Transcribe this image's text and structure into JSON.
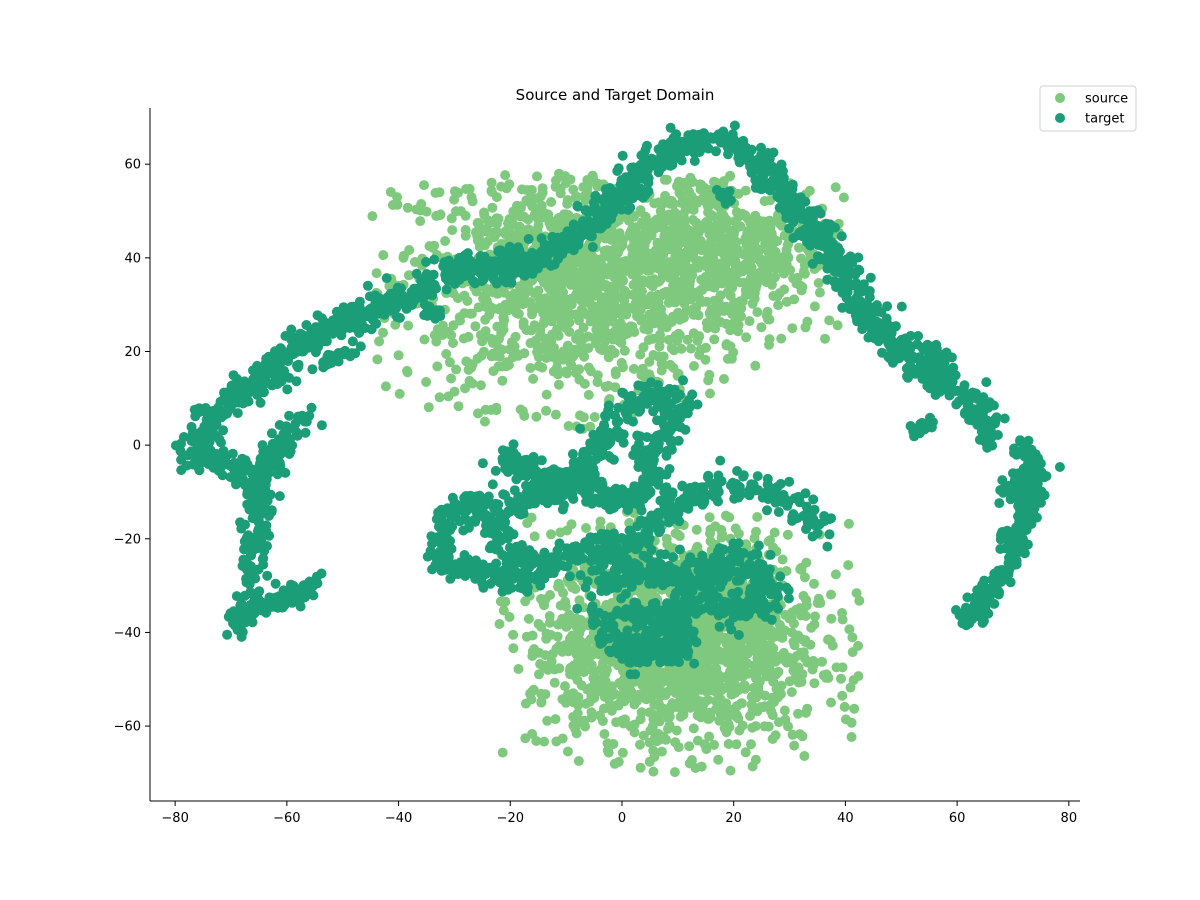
{
  "chart_data": {
    "type": "scatter",
    "title": "Source and Target Domain",
    "xlabel": "",
    "ylabel": "",
    "xlim": [
      -84.5,
      82
    ],
    "ylim": [
      -76,
      72
    ],
    "x_ticks": [
      -80,
      -60,
      -40,
      -20,
      0,
      20,
      40,
      60,
      80
    ],
    "x_tick_labels": [
      "−80",
      "−60",
      "−40",
      "−20",
      "0",
      "20",
      "40",
      "60",
      "80"
    ],
    "y_ticks": [
      -60,
      -40,
      -20,
      0,
      20,
      40,
      60
    ],
    "y_tick_labels": [
      "−60",
      "−40",
      "−20",
      "0",
      "20",
      "40",
      "60"
    ],
    "grid": false,
    "legend_position": "top-right",
    "series": [
      {
        "name": "source",
        "color": "#7fc97f",
        "clusters": [
          {
            "center": [
              -8,
              35
            ],
            "spread": [
              16,
              13
            ],
            "count": 1300,
            "bounds": {
              "x": [
                -45,
                30
              ],
              "y": [
                3,
                58
              ]
            }
          },
          {
            "center": [
              18,
              42
            ],
            "spread": [
              11,
              9
            ],
            "count": 500,
            "bounds": {
              "x": [
                -2,
                40
              ],
              "y": [
                20,
                58
              ]
            }
          },
          {
            "center": [
              10,
              -42
            ],
            "spread": [
              13,
              12
            ],
            "count": 1600,
            "bounds": {
              "x": [
                -22,
                43
              ],
              "y": [
                -70,
                -14
              ]
            }
          }
        ]
      },
      {
        "name": "target",
        "color": "#1b9e77",
        "paths": [
          {
            "points": [
              [
                -77,
                -4
              ],
              [
                -74,
                5
              ],
              [
                -70,
                10
              ],
              [
                -64,
                14
              ],
              [
                -58,
                21
              ],
              [
                -52,
                25
              ],
              [
                -46,
                28
              ],
              [
                -40,
                31
              ],
              [
                -35,
                34
              ],
              [
                -30,
                38
              ],
              [
                -25,
                38
              ],
              [
                -20,
                38
              ],
              [
                -15,
                40
              ],
              [
                -10,
                43
              ],
              [
                -5,
                48
              ],
              [
                0,
                54
              ],
              [
                4,
                59
              ],
              [
                8,
                62
              ],
              [
                12,
                64
              ],
              [
                17,
                65
              ],
              [
                22,
                63
              ],
              [
                26,
                59
              ],
              [
                30,
                53
              ],
              [
                33,
                48
              ],
              [
                36,
                43
              ],
              [
                39,
                38
              ],
              [
                43,
                30
              ],
              [
                47,
                23
              ],
              [
                52,
                18
              ],
              [
                57,
                14
              ],
              [
                62,
                10
              ],
              [
                67,
                6
              ]
            ],
            "jitter": 1.6,
            "count": 1400
          },
          {
            "points": [
              [
                -69,
                -40
              ],
              [
                -66,
                -32
              ],
              [
                -66,
                -20
              ],
              [
                -65,
                -10
              ],
              [
                -63,
                -3
              ],
              [
                -60,
                3
              ],
              [
                -56,
                6
              ]
            ],
            "jitter": 1.3,
            "count": 250
          },
          {
            "points": [
              [
                -66,
                -35
              ],
              [
                -60,
                -33
              ],
              [
                -57,
                -31
              ],
              [
                -55,
                -29
              ]
            ],
            "jitter": 1.0,
            "count": 80
          },
          {
            "points": [
              [
                -75,
                0
              ],
              [
                -72,
                -4
              ],
              [
                -69,
                -5
              ],
              [
                -66,
                -8
              ]
            ],
            "jitter": 1.2,
            "count": 80
          },
          {
            "points": [
              [
                62,
                -38
              ],
              [
                65,
                -33
              ],
              [
                69,
                -26
              ],
              [
                72,
                -15
              ],
              [
                74,
                -8
              ],
              [
                73,
                -2
              ],
              [
                71,
                0
              ]
            ],
            "jitter": 1.2,
            "count": 250
          },
          {
            "points": [
              [
                68,
                -10
              ],
              [
                71,
                -8
              ],
              [
                74,
                -12
              ]
            ],
            "jitter": 1.2,
            "count": 60
          },
          {
            "points": [
              [
                -33,
                -22
              ],
              [
                -30,
                -14
              ],
              [
                -25,
                -13
              ],
              [
                -22,
                -18
              ],
              [
                -20,
                -22
              ],
              [
                -17,
                -26
              ],
              [
                -12,
                -25
              ],
              [
                -5,
                -22
              ],
              [
                0,
                -22
              ],
              [
                5,
                -18
              ],
              [
                10,
                -12
              ],
              [
                15,
                -10
              ],
              [
                20,
                -8
              ],
              [
                26,
                -10
              ],
              [
                32,
                -14
              ],
              [
                36,
                -18
              ]
            ],
            "jitter": 1.6,
            "count": 450
          },
          {
            "points": [
              [
                -33,
                -24
              ],
              [
                -30,
                -26
              ],
              [
                -25,
                -27
              ],
              [
                -20,
                -29
              ],
              [
                -15,
                -29
              ]
            ],
            "jitter": 1.2,
            "count": 120
          },
          {
            "points": [
              [
                -22,
                -5
              ],
              [
                -19,
                -2
              ],
              [
                -16,
                -7
              ],
              [
                -13,
                -11
              ],
              [
                -10,
                -9
              ],
              [
                -8,
                -5
              ],
              [
                -5,
                -3
              ],
              [
                -3,
                2
              ],
              [
                0,
                7
              ],
              [
                3,
                10
              ],
              [
                7,
                11
              ],
              [
                11,
                9
              ],
              [
                8,
                3
              ],
              [
                5,
                -1
              ],
              [
                5,
                -6
              ]
            ],
            "jitter": 1.5,
            "count": 350
          },
          {
            "points": [
              [
                -20,
                -14
              ],
              [
                -15,
                -10
              ],
              [
                -10,
                -6
              ],
              [
                -6,
                -9
              ],
              [
                -3,
                -12
              ],
              [
                2,
                -11
              ],
              [
                6,
                -8
              ]
            ],
            "jitter": 1.4,
            "count": 200
          },
          {
            "points": [
              [
                -4,
                -30
              ],
              [
                0,
                -26
              ],
              [
                4,
                -28
              ],
              [
                8,
                -26
              ],
              [
                12,
                -30
              ],
              [
                16,
                -26
              ],
              [
                20,
                -24
              ],
              [
                24,
                -26
              ],
              [
                26,
                -32
              ],
              [
                22,
                -36
              ],
              [
                18,
                -34
              ],
              [
                14,
                -34
              ],
              [
                10,
                -35
              ],
              [
                6,
                -40
              ],
              [
                3,
                -46
              ],
              [
                -1,
                -42
              ],
              [
                -3,
                -36
              ]
            ],
            "jitter": 1.8,
            "count": 500
          },
          {
            "points": [
              [
                1,
                -37
              ],
              [
                5,
                -36
              ],
              [
                9,
                -38
              ],
              [
                11,
                -43
              ],
              [
                8,
                -45
              ],
              [
                4,
                -42
              ]
            ],
            "jitter": 1.4,
            "count": 150
          },
          {
            "points": [
              [
                55,
                21
              ],
              [
                57,
                17
              ],
              [
                55,
                14
              ]
            ],
            "jitter": 0.9,
            "count": 50
          },
          {
            "points": [
              [
                62,
                7
              ],
              [
                64,
                5
              ],
              [
                66,
                3
              ],
              [
                65,
                1
              ]
            ],
            "jitter": 0.9,
            "count": 40
          },
          {
            "points": [
              [
                55,
                4
              ],
              [
                52,
                3
              ]
            ],
            "jitter": 0.7,
            "count": 20
          },
          {
            "points": [
              [
                -35,
                28
              ],
              [
                -33,
                28
              ]
            ],
            "jitter": 0.6,
            "count": 20
          },
          {
            "points": [
              [
                18,
                54
              ],
              [
                19,
                52
              ]
            ],
            "jitter": 0.6,
            "count": 15
          },
          {
            "points": [
              [
                -48,
                21
              ],
              [
                -52,
                18
              ],
              [
                -55,
                17
              ]
            ],
            "jitter": 0.8,
            "count": 25
          }
        ]
      }
    ]
  }
}
